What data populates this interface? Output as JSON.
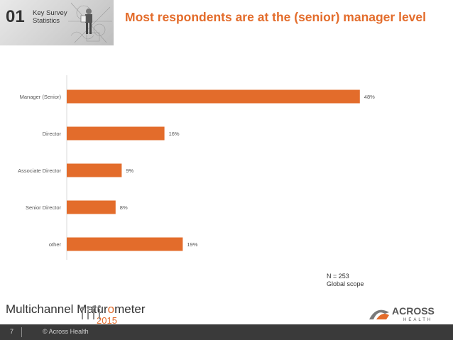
{
  "header": {
    "section_number": "01",
    "section_title": "Key Survey Statistics",
    "slide_title": "Most respondents are at the (senior) manager level"
  },
  "chart_data": {
    "type": "bar",
    "orientation": "horizontal",
    "categories": [
      "Manager (Senior)",
      "Director",
      "Associate Director",
      "Senior Director",
      "other"
    ],
    "values": [
      48,
      16,
      9,
      8,
      19
    ],
    "value_labels": [
      "48%",
      "16%",
      "9%",
      "8%",
      "19%"
    ],
    "unit": "%",
    "bar_color": "#e36c2b",
    "xlim": [
      0,
      50
    ],
    "grid": false,
    "legend": "none"
  },
  "note": {
    "sample_size": "N = 253",
    "scope": "Global scope"
  },
  "branding": {
    "product_name_before": "Multichannel Matur",
    "product_name_o": "o",
    "product_name_after": "meter",
    "product_year": "2015",
    "logo_text": "ACROSS",
    "logo_subtext": "HEALTH",
    "accent_color": "#e36c2b"
  },
  "footer": {
    "page_number": "7",
    "copyright": "© Across Health"
  }
}
